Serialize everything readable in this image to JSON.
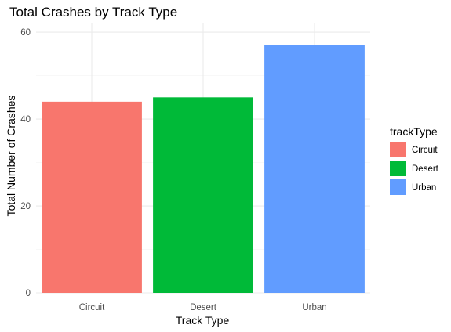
{
  "chart_data": {
    "type": "bar",
    "title": "Total Crashes by Track Type",
    "xlabel": "Track Type",
    "ylabel": "Total Number of Crashes",
    "categories": [
      "Circuit",
      "Desert",
      "Urban"
    ],
    "values": [
      44,
      45,
      57
    ],
    "colors": [
      "#F8766D",
      "#00BA38",
      "#619CFF"
    ],
    "ylim": [
      0,
      62
    ],
    "yticks": [
      0,
      20,
      40,
      60
    ],
    "grid": true,
    "legend": {
      "title": "trackType",
      "placement": "right",
      "entries": [
        "Circuit",
        "Desert",
        "Urban"
      ]
    }
  }
}
